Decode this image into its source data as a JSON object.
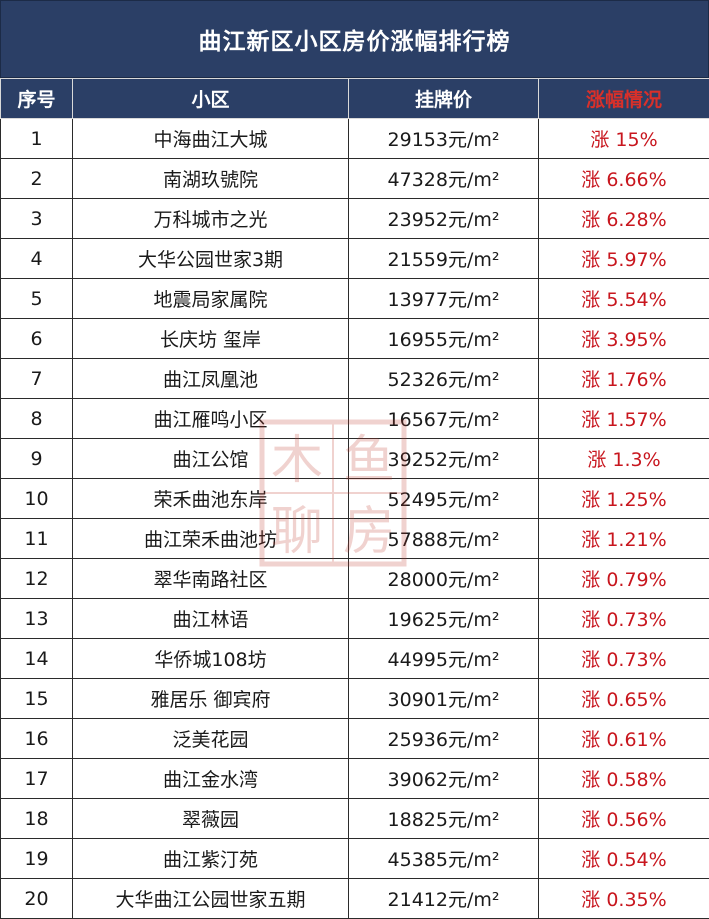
{
  "title": "曲江新区小区房价涨幅排行榜",
  "headers": {
    "index": "序号",
    "community": "小区",
    "price": "挂牌价",
    "change": "涨幅情况"
  },
  "colors": {
    "header_bg": "#2b3f66",
    "header_text": "#ffffff",
    "change_header_text": "#d9302a",
    "change_text": "#c8161e"
  },
  "watermark_chars": [
    "木",
    "鱼",
    "聊",
    "房"
  ],
  "rows": [
    {
      "index": "1",
      "community": "中海曲江大城",
      "price": "29153元/m²",
      "change": "涨 15%"
    },
    {
      "index": "2",
      "community": "南湖玖號院",
      "price": "47328元/m²",
      "change": "涨 6.66%"
    },
    {
      "index": "3",
      "community": "万科城市之光",
      "price": "23952元/m²",
      "change": "涨 6.28%"
    },
    {
      "index": "4",
      "community": "大华公园世家3期",
      "price": "21559元/m²",
      "change": "涨 5.97%"
    },
    {
      "index": "5",
      "community": "地震局家属院",
      "price": "13977元/m²",
      "change": "涨 5.54%"
    },
    {
      "index": "6",
      "community": "长庆坊 玺岸",
      "price": "16955元/m²",
      "change": "涨 3.95%"
    },
    {
      "index": "7",
      "community": "曲江凤凰池",
      "price": "52326元/m²",
      "change": "涨 1.76%"
    },
    {
      "index": "8",
      "community": "曲江雁鸣小区",
      "price": "16567元/m²",
      "change": "涨 1.57%"
    },
    {
      "index": "9",
      "community": "曲江公馆",
      "price": "39252元/m²",
      "change": "涨 1.3%"
    },
    {
      "index": "10",
      "community": "荣禾曲池东岸",
      "price": "52495元/m²",
      "change": "涨 1.25%"
    },
    {
      "index": "11",
      "community": "曲江荣禾曲池坊",
      "price": "57888元/m²",
      "change": "涨 1.21%"
    },
    {
      "index": "12",
      "community": "翠华南路社区",
      "price": "28000元/m²",
      "change": "涨 0.79%"
    },
    {
      "index": "13",
      "community": "曲江林语",
      "price": "19625元/m²",
      "change": "涨 0.73%"
    },
    {
      "index": "14",
      "community": "华侨城108坊",
      "price": "44995元/m²",
      "change": "涨 0.73%"
    },
    {
      "index": "15",
      "community": "雅居乐 御宾府",
      "price": "30901元/m²",
      "change": "涨 0.65%"
    },
    {
      "index": "16",
      "community": "泛美花园",
      "price": "25936元/m²",
      "change": "涨 0.61%"
    },
    {
      "index": "17",
      "community": "曲江金水湾",
      "price": "39062元/m²",
      "change": "涨 0.58%"
    },
    {
      "index": "18",
      "community": "翠薇园",
      "price": "18825元/m²",
      "change": "涨 0.56%"
    },
    {
      "index": "19",
      "community": "曲江紫汀苑",
      "price": "45385元/m²",
      "change": "涨 0.54%"
    },
    {
      "index": "20",
      "community": "大华曲江公园世家五期",
      "price": "21412元/m²",
      "change": "涨 0.35%"
    }
  ]
}
